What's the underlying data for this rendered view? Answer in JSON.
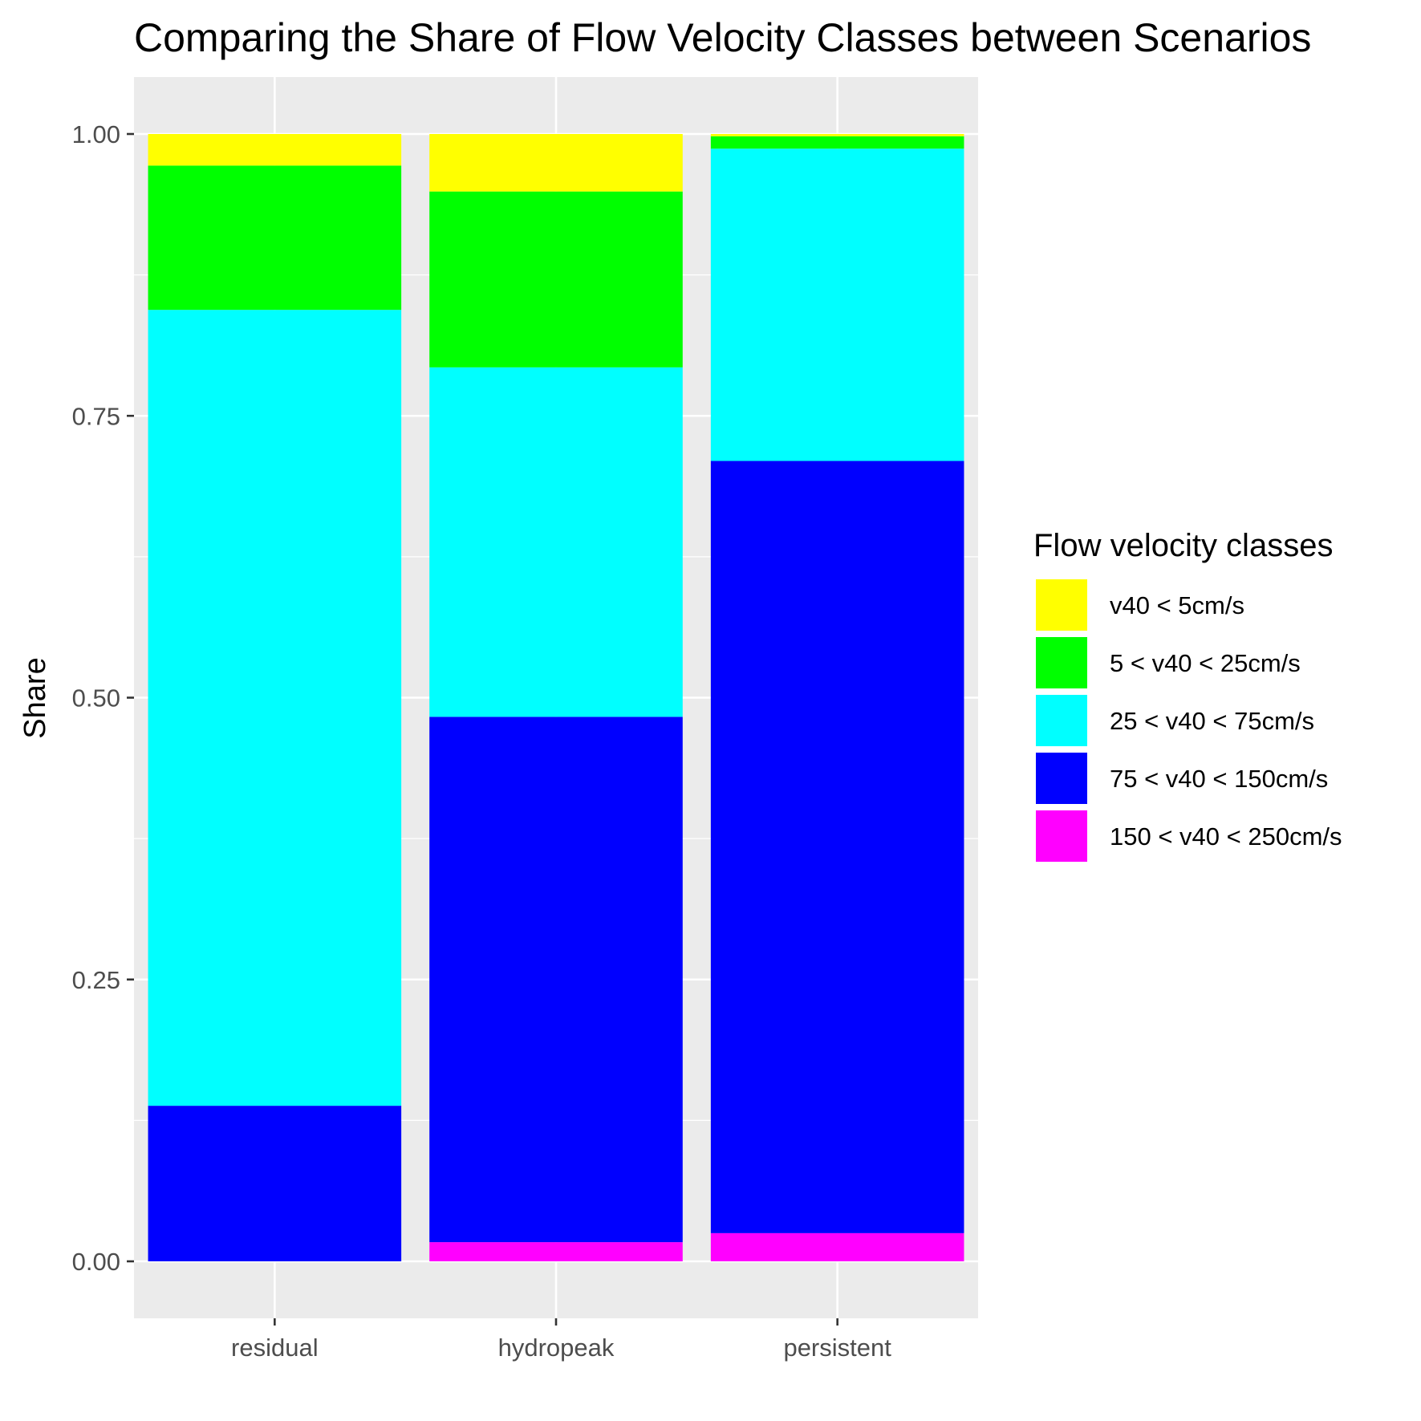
{
  "chart_data": {
    "type": "bar",
    "stacked": true,
    "title": "Comparing the Share of Flow Velocity Classes between Scenarios",
    "xlabel": "",
    "ylabel": "Share",
    "ylim": [
      -0.05,
      1.05
    ],
    "yticks": [
      "0.00",
      "0.25",
      "0.50",
      "0.75",
      "1.00"
    ],
    "grid": true,
    "legend_title": "Flow velocity classes",
    "legend_position": "right",
    "categories": [
      "residual",
      "hydropeak",
      "persistent"
    ],
    "series": [
      {
        "name": "150 < v40 < 250cm/s",
        "color": "#FF00FF",
        "values": [
          0.0,
          0.017,
          0.025
        ]
      },
      {
        "name": "75 < v40 < 150cm/s",
        "color": "#0000FF",
        "values": [
          0.138,
          0.466,
          0.685
        ]
      },
      {
        "name": "25 < v40 < 75cm/s",
        "color": "#00FFFF",
        "values": [
          0.706,
          0.31,
          0.277
        ]
      },
      {
        "name": "5 < v40 < 25cm/s",
        "color": "#00FF00",
        "values": [
          0.128,
          0.156,
          0.011
        ]
      },
      {
        "name": "v40 < 5cm/s",
        "color": "#FFFF00",
        "values": [
          0.028,
          0.051,
          0.002
        ]
      }
    ],
    "legend_order": [
      "v40 < 5cm/s",
      "5 < v40 < 25cm/s",
      "25 < v40 < 75cm/s",
      "75 < v40 < 150cm/s",
      "150 < v40 < 250cm/s"
    ],
    "panel_color": "#EBEBEB",
    "grid_color": "#FFFFFF"
  }
}
